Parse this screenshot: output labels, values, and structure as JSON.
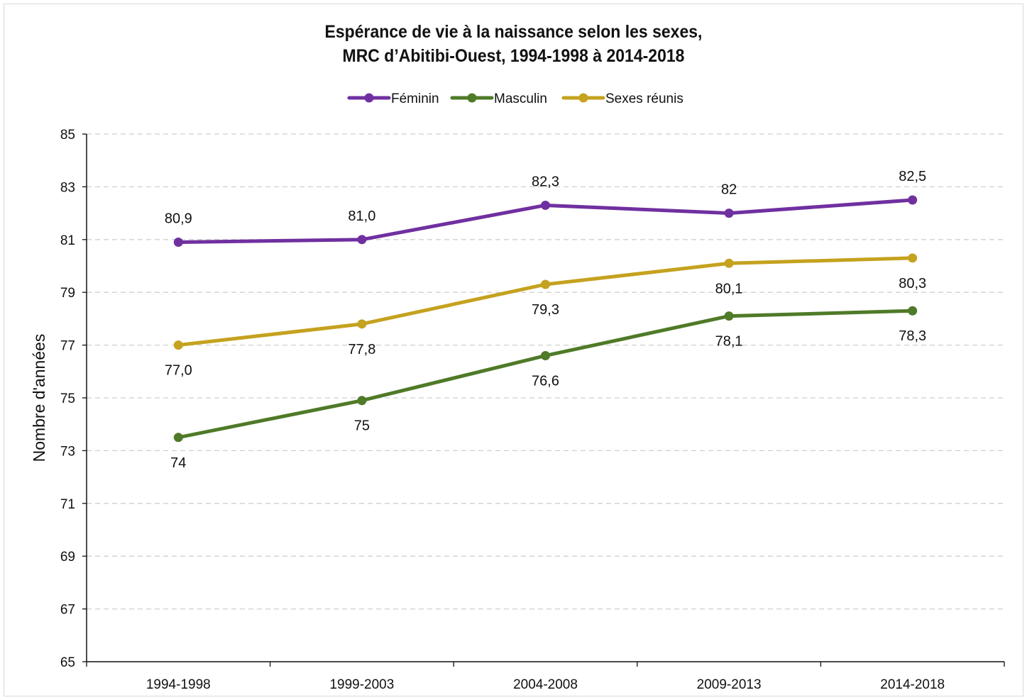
{
  "chart_data": {
    "type": "line",
    "title_line1": "Espérance de vie à la naissance selon les sexes,",
    "title_line2": "MRC d’Abitibi-Ouest, 1994-1998  à 2014-2018",
    "xlabel": "",
    "ylabel": "Nombre d'années",
    "ylim": [
      65,
      85
    ],
    "yticks": [
      65,
      67,
      69,
      71,
      73,
      75,
      77,
      79,
      81,
      83,
      85
    ],
    "grid": true,
    "legend_position": "top-center",
    "categories": [
      "1994-1998",
      "1999-2003",
      "2004-2008",
      "2009-2013",
      "2014-2018"
    ],
    "series": [
      {
        "name": "Féminin",
        "color": "#7030a0",
        "values": [
          80.9,
          81.0,
          82.3,
          82.0,
          82.5
        ],
        "labels": [
          "80,9",
          "81,0",
          "82,3",
          "82",
          "82,5"
        ],
        "label_position": "above"
      },
      {
        "name": "Masculin",
        "color": "#4f7a28",
        "values": [
          73.5,
          74.9,
          76.6,
          78.1,
          78.3
        ],
        "labels": [
          "74",
          "75",
          "76,6",
          "78,1",
          "78,3"
        ],
        "label_position": "below"
      },
      {
        "name": "Sexes réunis",
        "color": "#c5a21f",
        "values": [
          77.0,
          77.8,
          79.3,
          80.1,
          80.3
        ],
        "labels": [
          "77,0",
          "77,8",
          "79,3",
          "80,1",
          "80,3"
        ],
        "label_position": "below"
      }
    ]
  }
}
